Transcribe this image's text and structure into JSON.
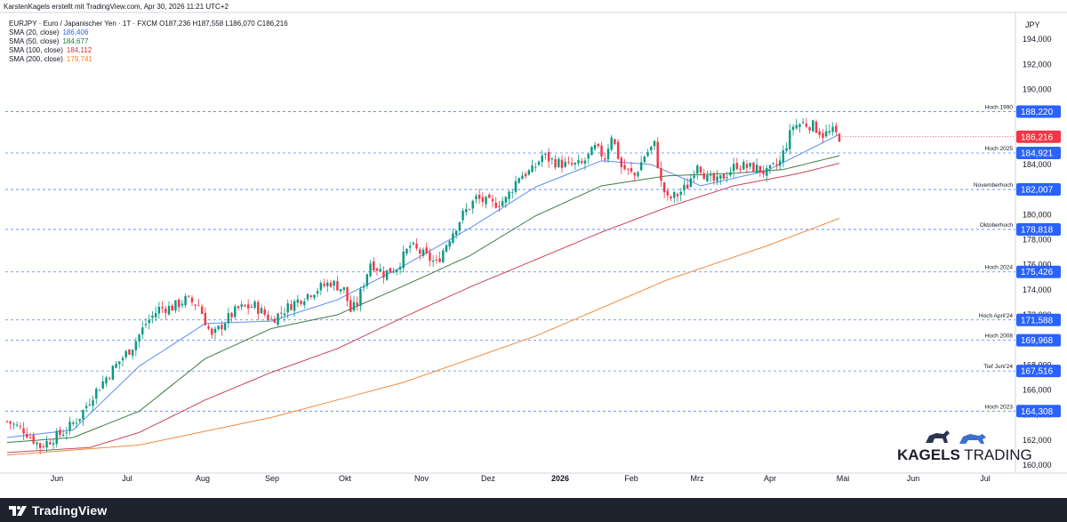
{
  "header": {
    "author_line": "KarstenKagels erstellt mit TradingView.com, Apr 30, 2026 11:21 UTC+2",
    "symbol_line": "EURJPY · Euro / Japanischer Yen · 1T · FXCM  O187,236  H187,558  L186,070  C186,216"
  },
  "legend": [
    {
      "label": "SMA (20, close)",
      "value": "186,406",
      "color": "#2962ff"
    },
    {
      "label": "SMA (50, close)",
      "value": "184,677",
      "color": "#1b7a3a"
    },
    {
      "label": "SMA (100, close)",
      "value": "184,112",
      "color": "#d32f2f"
    },
    {
      "label": "SMA (200, close)",
      "value": "179,741",
      "color": "#ff7f0e"
    }
  ],
  "colors": {
    "up": "#089981",
    "down": "#f23645",
    "line_label": "#2962ff",
    "dash": "#2962ff",
    "sma20": "#5b8def",
    "sma50": "#3f7a46",
    "sma100": "#c8445a",
    "sma200": "#f28b3c"
  },
  "chart_data": {
    "type": "candlestick",
    "currency": "JPY",
    "ylim": [
      159.5,
      196.0
    ],
    "y_ticks": [
      "194,000",
      "192,000",
      "190,000",
      "188,000",
      "186,000",
      "184,000",
      "182,000",
      "180,000",
      "178,000",
      "176,000",
      "174,000",
      "172,000",
      "170,000",
      "168,000",
      "166,000",
      "164,000",
      "162,000",
      "160,000"
    ],
    "x_ticks": [
      "Jun",
      "Jul",
      "Aug",
      "Sep",
      "Okt",
      "Nov",
      "Dez",
      "2026",
      "Feb",
      "Mrz",
      "Apr",
      "Mai",
      "Jun",
      "Jul"
    ],
    "last_price": "186,216",
    "last_price_color": "#f23645",
    "close_anchors": [
      [
        0,
        163.5
      ],
      [
        5,
        162.8
      ],
      [
        10,
        161.5
      ],
      [
        18,
        162.8
      ],
      [
        22,
        163.9
      ],
      [
        26,
        165.6
      ],
      [
        30,
        167.0
      ],
      [
        34,
        168.3
      ],
      [
        38,
        169.5
      ],
      [
        42,
        171.3
      ],
      [
        46,
        172.5
      ],
      [
        50,
        172.6
      ],
      [
        54,
        173.2
      ],
      [
        58,
        172.8
      ],
      [
        62,
        170.2
      ],
      [
        66,
        171.5
      ],
      [
        70,
        172.5
      ],
      [
        75,
        172.7
      ],
      [
        80,
        171.6
      ],
      [
        86,
        172.8
      ],
      [
        92,
        173.8
      ],
      [
        98,
        174.6
      ],
      [
        102,
        174.0
      ],
      [
        104,
        172.3
      ],
      [
        106,
        172.9
      ],
      [
        110,
        176.2
      ],
      [
        114,
        175.3
      ],
      [
        118,
        175.8
      ],
      [
        122,
        177.5
      ],
      [
        126,
        176.8
      ],
      [
        130,
        176.1
      ],
      [
        134,
        178.2
      ],
      [
        138,
        180.0
      ],
      [
        142,
        181.3
      ],
      [
        147,
        180.8
      ],
      [
        151,
        181.2
      ],
      [
        155,
        183.1
      ],
      [
        159,
        183.5
      ],
      [
        162,
        184.7
      ],
      [
        166,
        184.2
      ],
      [
        170,
        183.9
      ],
      [
        174,
        184.0
      ],
      [
        178,
        185.3
      ],
      [
        181,
        184.6
      ],
      [
        183,
        186.4
      ],
      [
        186,
        183.8
      ],
      [
        190,
        183.1
      ],
      [
        193,
        184.7
      ],
      [
        196,
        185.6
      ],
      [
        198,
        182.5
      ],
      [
        200,
        181.2
      ],
      [
        203,
        181.6
      ],
      [
        206,
        182.3
      ],
      [
        209,
        184.2
      ],
      [
        212,
        182.8
      ],
      [
        215,
        182.6
      ],
      [
        218,
        183.3
      ],
      [
        221,
        184.0
      ],
      [
        224,
        183.8
      ],
      [
        227,
        183.7
      ],
      [
        230,
        183.3
      ],
      [
        234,
        184.2
      ],
      [
        238,
        187.1
      ],
      [
        241,
        187.3
      ],
      [
        244,
        187.1
      ],
      [
        247,
        186.4
      ],
      [
        250,
        186.6
      ],
      [
        252,
        186.2
      ]
    ],
    "wicks": 0.9,
    "series": [
      {
        "name": "SMA (20, close)",
        "anchors": [
          [
            0,
            162.2
          ],
          [
            20,
            162.8
          ],
          [
            40,
            167.9
          ],
          [
            60,
            171.3
          ],
          [
            80,
            171.5
          ],
          [
            100,
            173.2
          ],
          [
            120,
            175.9
          ],
          [
            140,
            178.9
          ],
          [
            160,
            182.2
          ],
          [
            180,
            184.3
          ],
          [
            195,
            184.0
          ],
          [
            210,
            182.3
          ],
          [
            230,
            183.5
          ],
          [
            252,
            186.4
          ]
        ]
      },
      {
        "name": "SMA (50, close)",
        "anchors": [
          [
            0,
            161.8
          ],
          [
            20,
            162.2
          ],
          [
            40,
            164.3
          ],
          [
            60,
            168.5
          ],
          [
            80,
            170.9
          ],
          [
            100,
            172.0
          ],
          [
            120,
            174.3
          ],
          [
            140,
            176.7
          ],
          [
            160,
            179.9
          ],
          [
            180,
            182.3
          ],
          [
            200,
            183.1
          ],
          [
            220,
            183.3
          ],
          [
            235,
            183.6
          ],
          [
            252,
            184.7
          ]
        ]
      },
      {
        "name": "SMA (100, close)",
        "anchors": [
          [
            0,
            161.0
          ],
          [
            25,
            161.4
          ],
          [
            40,
            162.6
          ],
          [
            60,
            165.2
          ],
          [
            80,
            167.4
          ],
          [
            100,
            169.3
          ],
          [
            120,
            171.8
          ],
          [
            140,
            174.2
          ],
          [
            160,
            176.4
          ],
          [
            180,
            178.6
          ],
          [
            200,
            180.6
          ],
          [
            220,
            182.3
          ],
          [
            240,
            183.3
          ],
          [
            252,
            184.1
          ]
        ]
      },
      {
        "name": "SMA (200, close)",
        "anchors": [
          [
            0,
            160.8
          ],
          [
            40,
            161.6
          ],
          [
            80,
            163.8
          ],
          [
            120,
            166.6
          ],
          [
            160,
            170.3
          ],
          [
            200,
            174.8
          ],
          [
            230,
            177.5
          ],
          [
            252,
            179.7
          ]
        ]
      }
    ],
    "levels": [
      {
        "name": "Hoch 1990",
        "value": 188.22,
        "label": "188,220"
      },
      {
        "name": "Hoch 2025",
        "value": 184.921,
        "label": "184,921"
      },
      {
        "name": "Novemberhoch",
        "value": 182.007,
        "label": "182,007"
      },
      {
        "name": "Oktoberhoch",
        "value": 178.818,
        "label": "178,818"
      },
      {
        "name": "Hoch 2024",
        "value": 175.426,
        "label": "175,426"
      },
      {
        "name": "Hoch April'24",
        "value": 171.588,
        "label": "171,588"
      },
      {
        "name": "Hoch 2008",
        "value": 169.968,
        "label": "169,968"
      },
      {
        "name": "Tief Juni'24",
        "value": 167.516,
        "label": "167,516"
      },
      {
        "name": "Hoch 2023",
        "value": 164.308,
        "label": "164,308"
      }
    ]
  },
  "brand": {
    "name_bold": "KAGELS",
    "name_rest": " TRADING"
  },
  "footer": {
    "logo_text": "TradingView"
  }
}
